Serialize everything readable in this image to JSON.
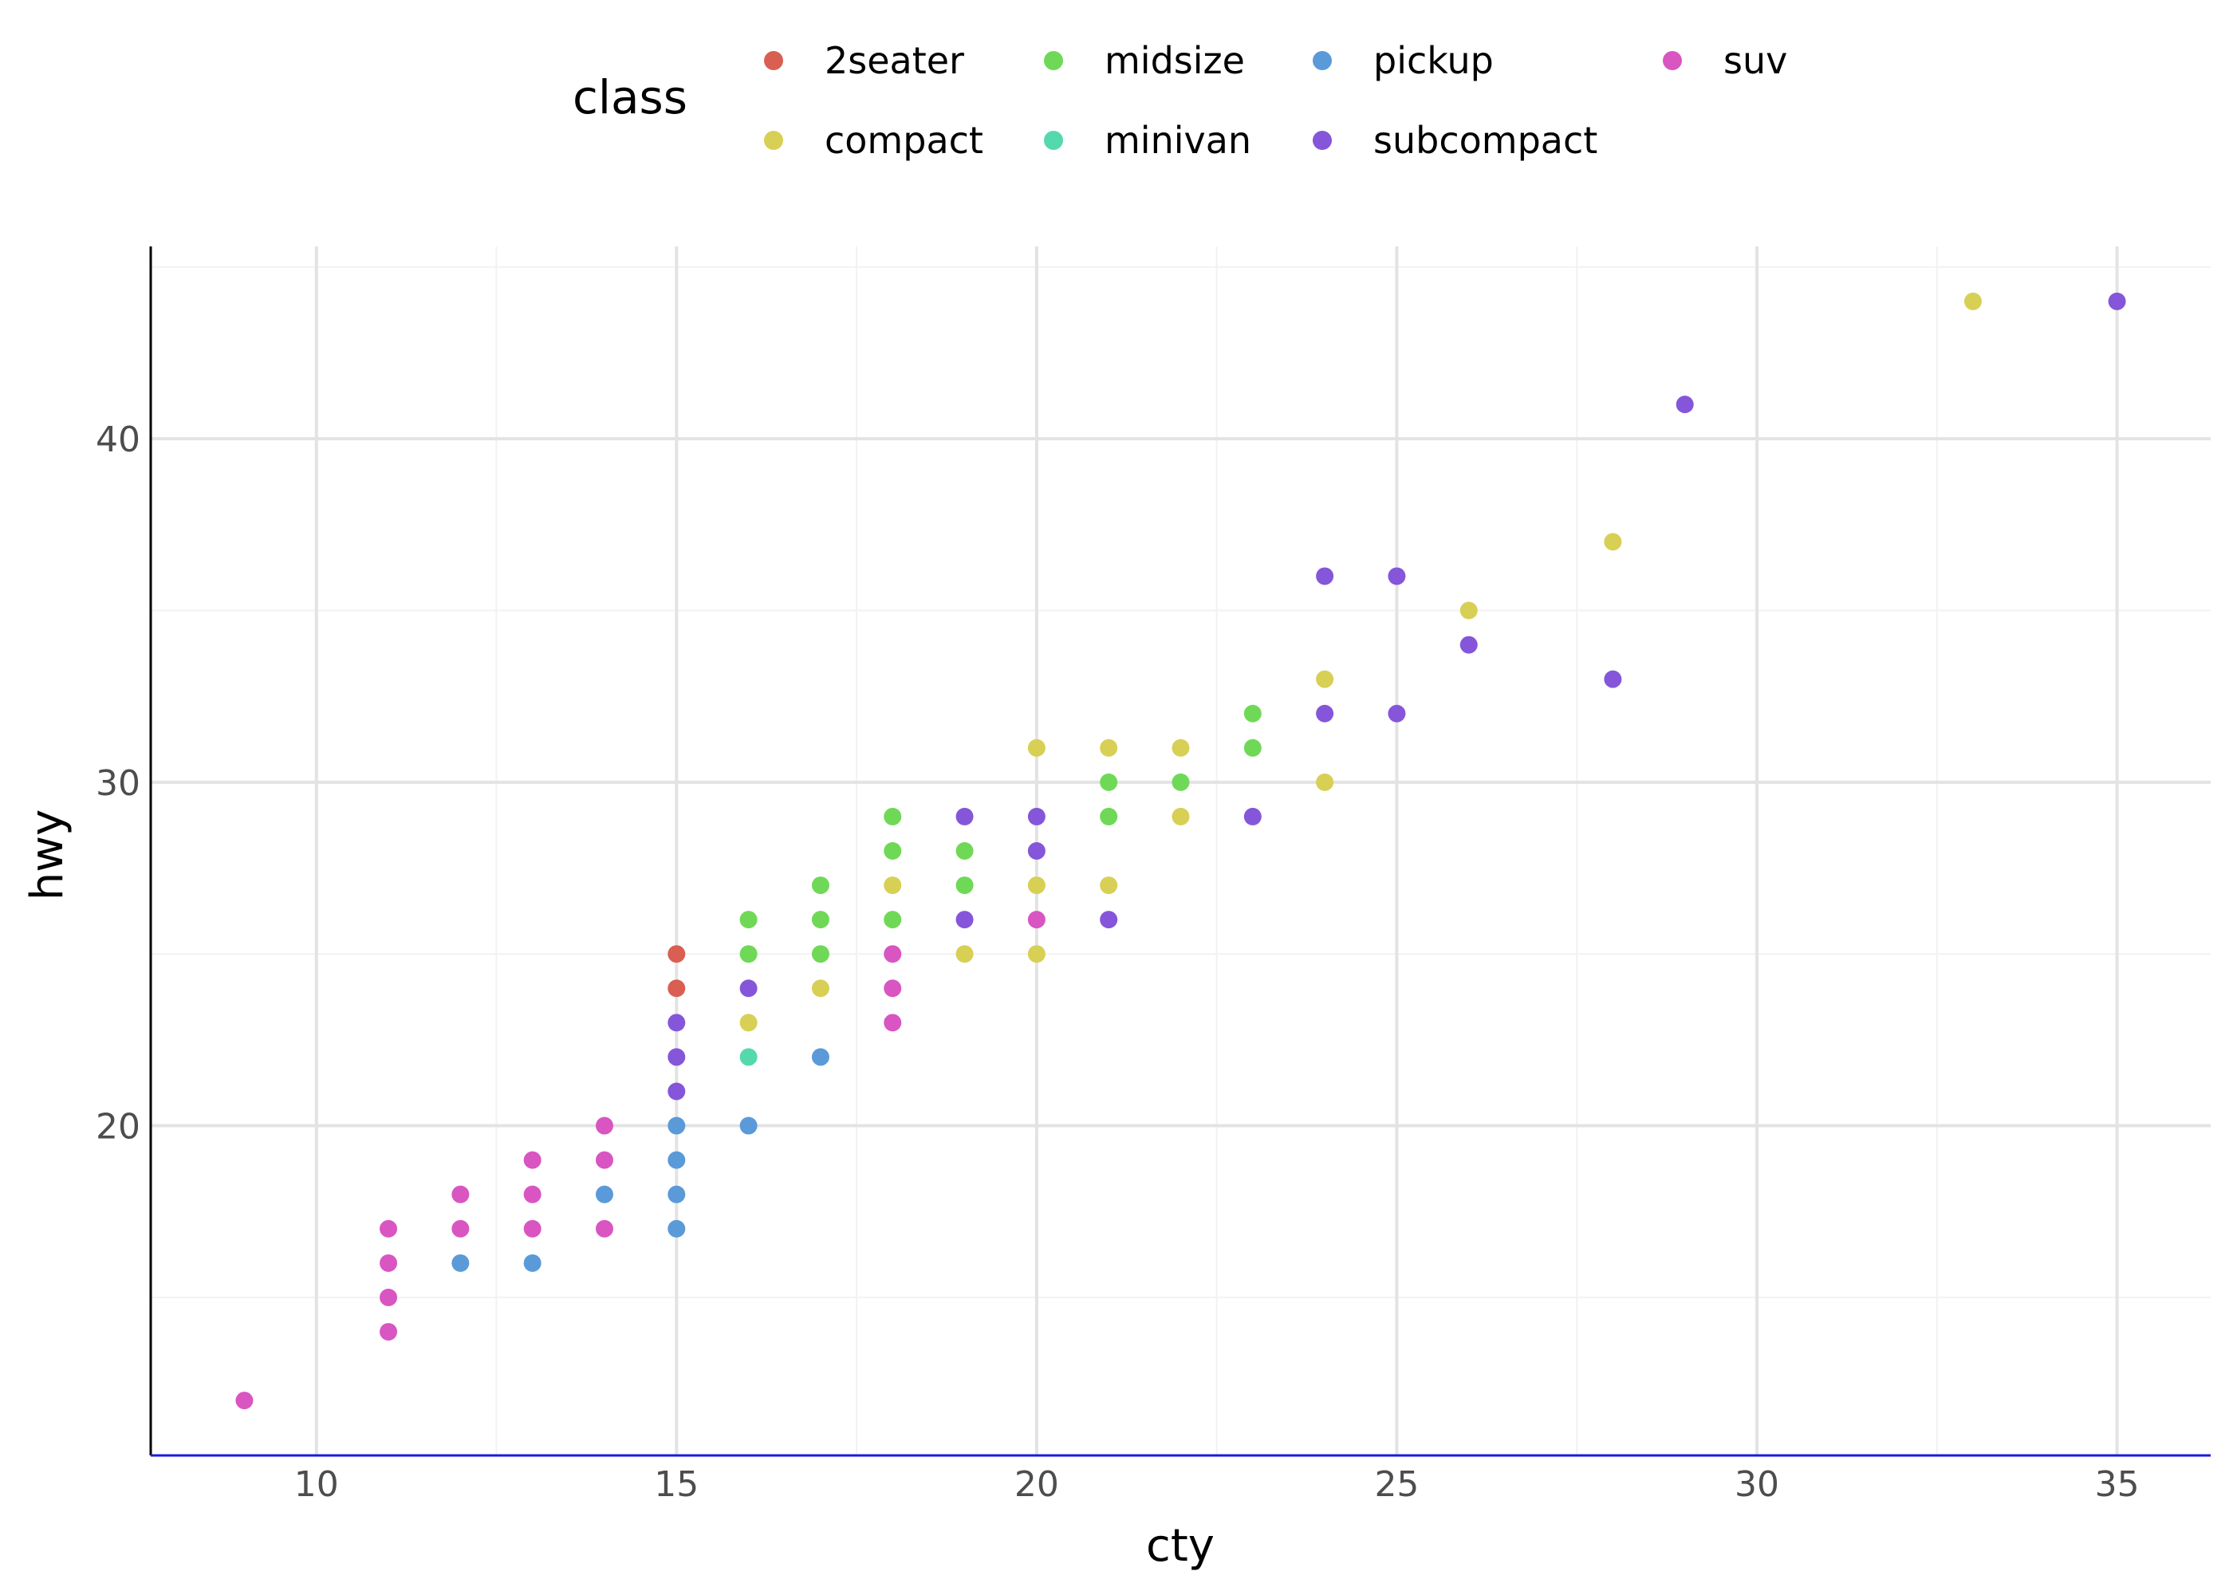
{
  "chart_data": {
    "type": "scatter",
    "title": "",
    "xlabel": "cty",
    "ylabel": "hwy",
    "xlim": [
      7.7,
      36.3
    ],
    "ylim": [
      10.4,
      45.6
    ],
    "x_ticks": [
      10,
      15,
      20,
      25,
      30,
      35
    ],
    "y_ticks": [
      20,
      30,
      40
    ],
    "grid": true,
    "legend": {
      "title": "class",
      "placement": "top",
      "entries": [
        "2seater",
        "compact",
        "midsize",
        "minivan",
        "pickup",
        "subcompact",
        "suv"
      ]
    },
    "colors": {
      "2seater": "#d95f53",
      "compact": "#d8cf55",
      "midsize": "#6fd957",
      "minivan": "#54d8ad",
      "pickup": "#5a9ad9",
      "subcompact": "#8556d9",
      "suv": "#d955c2"
    },
    "series": [
      {
        "name": "2seater",
        "points": [
          [
            15,
            25
          ],
          [
            15,
            24
          ]
        ]
      },
      {
        "name": "compact",
        "points": [
          [
            33,
            44
          ],
          [
            28,
            37
          ],
          [
            26,
            35
          ],
          [
            24,
            33
          ],
          [
            24,
            30
          ],
          [
            20,
            31
          ],
          [
            21,
            31
          ],
          [
            22,
            31
          ],
          [
            22,
            29
          ],
          [
            18,
            27
          ],
          [
            20,
            27
          ],
          [
            21,
            27
          ],
          [
            19,
            25
          ],
          [
            20,
            25
          ],
          [
            16,
            23
          ],
          [
            17,
            24
          ]
        ]
      },
      {
        "name": "midsize",
        "points": [
          [
            23,
            32
          ],
          [
            23,
            31
          ],
          [
            21,
            30
          ],
          [
            22,
            30
          ],
          [
            21,
            29
          ],
          [
            18,
            29
          ],
          [
            18,
            28
          ],
          [
            19,
            28
          ],
          [
            17,
            27
          ],
          [
            19,
            27
          ],
          [
            16,
            26
          ],
          [
            17,
            26
          ],
          [
            18,
            26
          ],
          [
            16,
            25
          ],
          [
            17,
            25
          ]
        ]
      },
      {
        "name": "minivan",
        "points": [
          [
            16,
            22
          ]
        ]
      },
      {
        "name": "pickup",
        "points": [
          [
            17,
            22
          ],
          [
            16,
            20
          ],
          [
            15,
            20
          ],
          [
            15,
            19
          ],
          [
            14,
            18
          ],
          [
            15,
            18
          ],
          [
            15,
            17
          ],
          [
            12,
            16
          ],
          [
            13,
            16
          ]
        ]
      },
      {
        "name": "subcompact",
        "points": [
          [
            35,
            44
          ],
          [
            29,
            41
          ],
          [
            24,
            36
          ],
          [
            25,
            36
          ],
          [
            26,
            34
          ],
          [
            28,
            33
          ],
          [
            24,
            32
          ],
          [
            25,
            32
          ],
          [
            23,
            29
          ],
          [
            19,
            29
          ],
          [
            20,
            29
          ],
          [
            20,
            28
          ],
          [
            19,
            26
          ],
          [
            21,
            26
          ],
          [
            16,
            24
          ],
          [
            15,
            23
          ],
          [
            15,
            22
          ],
          [
            15,
            21
          ]
        ]
      },
      {
        "name": "suv",
        "points": [
          [
            9,
            12
          ],
          [
            11,
            14
          ],
          [
            11,
            15
          ],
          [
            11,
            16
          ],
          [
            11,
            17
          ],
          [
            12,
            17
          ],
          [
            12,
            18
          ],
          [
            13,
            17
          ],
          [
            13,
            18
          ],
          [
            13,
            19
          ],
          [
            14,
            17
          ],
          [
            14,
            19
          ],
          [
            14,
            20
          ],
          [
            18,
            25
          ],
          [
            18,
            24
          ],
          [
            18,
            23
          ],
          [
            20,
            26
          ]
        ]
      }
    ]
  }
}
